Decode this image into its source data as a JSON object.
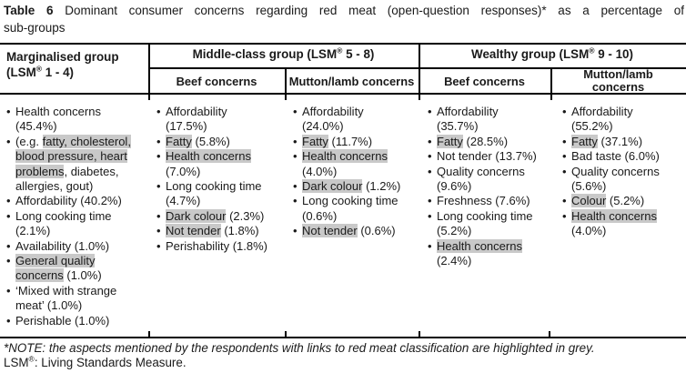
{
  "colors": {
    "highlight_grey": "#c9c9c9",
    "border_black": "#000000",
    "background": "#ffffff"
  },
  "title": {
    "line1": [
      {
        "t": "Table 6",
        "b": true
      },
      {
        "t": " Dominant consumer concerns regarding red meat (open-question responses)* as a percentage of"
      }
    ],
    "line2": [
      {
        "t": "sub-groups"
      }
    ]
  },
  "table": {
    "header": {
      "marginalised": [
        {
          "t": "Marginalised group\n(LSM"
        },
        {
          "t": "®",
          "sup": true
        },
        {
          "t": " 1 - 4)"
        }
      ],
      "middle_group": [
        {
          "t": "Middle-class group (LSM"
        },
        {
          "t": "®",
          "sup": true
        },
        {
          "t": " 5 - 8)"
        }
      ],
      "wealthy_group": [
        {
          "t": "Wealthy group (LSM"
        },
        {
          "t": "®",
          "sup": true
        },
        {
          "t": " 9 - 10)"
        }
      ],
      "middle_beef": [
        {
          "t": "Beef concerns"
        }
      ],
      "middle_mutton": [
        {
          "t": "Mutton/lamb concerns"
        }
      ],
      "wealthy_beef": [
        {
          "t": "Beef concerns"
        }
      ],
      "wealthy_mutton": [
        {
          "t": "Mutton/lamb\nconcerns"
        }
      ]
    },
    "body": {
      "marginalised": [
        [
          {
            "t": "Health concerns\n(45.4%)"
          }
        ],
        [
          {
            "t": "(e.g. "
          },
          {
            "t": "fatty, cholesterol,\nblood pressure, heart\nproblems",
            "h": true
          },
          {
            "t": ", diabetes,\nallergies, gout)"
          }
        ],
        [
          {
            "t": "Affordability (40.2%)"
          }
        ],
        [
          {
            "t": "Long cooking time\n(2.1%)"
          }
        ],
        [
          {
            "t": "Availability (1.0%)"
          }
        ],
        [
          {
            "t": "General quality\nconcerns",
            "h": true
          },
          {
            "t": " (1.0%)"
          }
        ],
        [
          {
            "t": "‘Mixed with strange\nmeat’ (1.0%)"
          }
        ],
        [
          {
            "t": "Perishable (1.0%)"
          }
        ]
      ],
      "middle_beef": [
        [
          {
            "t": "Affordability\n(17.5%)"
          }
        ],
        [
          {
            "t": "Fatty",
            "h": true
          },
          {
            "t": " (5.8%)"
          }
        ],
        [
          {
            "t": "Health concerns",
            "h": true
          },
          {
            "t": "\n(7.0%)"
          }
        ],
        [
          {
            "t": "Long cooking time\n(4.7%)"
          }
        ],
        [
          {
            "t": "Dark colour",
            "h": true
          },
          {
            "t": " (2.3%)"
          }
        ],
        [
          {
            "t": "Not tender",
            "h": true
          },
          {
            "t": " (1.8%)"
          }
        ],
        [
          {
            "t": "Perishability (1.8%)"
          }
        ]
      ],
      "middle_mutton": [
        [
          {
            "t": "Affordability\n(24.0%)"
          }
        ],
        [
          {
            "t": "Fatty",
            "h": true
          },
          {
            "t": " (11.7%)"
          }
        ],
        [
          {
            "t": "Health concerns",
            "h": true
          },
          {
            "t": "\n(4.0%)"
          }
        ],
        [
          {
            "t": "Dark colour",
            "h": true
          },
          {
            "t": " (1.2%)"
          }
        ],
        [
          {
            "t": "Long cooking time\n(0.6%)"
          }
        ],
        [
          {
            "t": "Not tender",
            "h": true
          },
          {
            "t": " (0.6%)"
          }
        ]
      ],
      "wealthy_beef": [
        [
          {
            "t": "Affordability\n(35.7%)"
          }
        ],
        [
          {
            "t": "Fatty",
            "h": true
          },
          {
            "t": " (28.5%)"
          }
        ],
        [
          {
            "t": "Not tender (13.7%)"
          }
        ],
        [
          {
            "t": "Quality concerns\n(9.6%)"
          }
        ],
        [
          {
            "t": "Freshness (7.6%)"
          }
        ],
        [
          {
            "t": "Long cooking time\n(5.2%)"
          }
        ],
        [
          {
            "t": "Health concerns",
            "h": true
          },
          {
            "t": "\n(2.4%)"
          }
        ]
      ],
      "wealthy_mutton": [
        [
          {
            "t": "Affordability\n(55.2%)"
          }
        ],
        [
          {
            "t": "Fatty",
            "h": true
          },
          {
            "t": " (37.1%)"
          }
        ],
        [
          {
            "t": "Bad taste (6.0%)"
          }
        ],
        [
          {
            "t": "Quality concerns\n(5.6%)"
          }
        ],
        [
          {
            "t": "Colour",
            "h": true
          },
          {
            "t": " (5.2%)"
          }
        ],
        [
          {
            "t": "Health concerns",
            "h": true
          },
          {
            "t": "\n(4.0%)"
          }
        ]
      ]
    }
  },
  "footnotes": {
    "note": [
      {
        "t": "*NOTE: the aspects mentioned by the respondents with links to red meat classification are highlighted in grey.",
        "i": true
      }
    ],
    "lsm": [
      {
        "t": "LSM"
      },
      {
        "t": "®",
        "sup": true
      },
      {
        "t": ": Living Standards Measure."
      }
    ]
  }
}
